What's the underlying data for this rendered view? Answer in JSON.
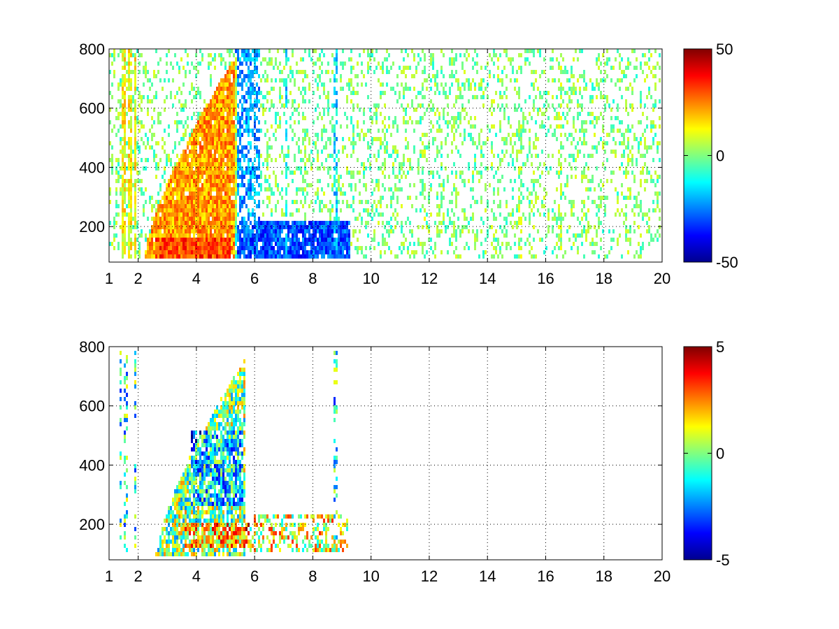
{
  "chart_data": [
    {
      "type": "heatmap",
      "title": "",
      "xlabel": "",
      "ylabel": "",
      "xlim": [
        1,
        20
      ],
      "ylim": [
        80,
        800
      ],
      "x_ticks": [
        1,
        2,
        4,
        6,
        8,
        10,
        12,
        14,
        16,
        18,
        20
      ],
      "y_ticks": [
        200,
        400,
        600,
        800
      ],
      "grid": true,
      "colormap": "jet",
      "colorbar": {
        "min": -50,
        "max": 50,
        "ticks": [
          -50,
          0,
          50
        ]
      },
      "noise_level": 10,
      "fill_probability": 0.25,
      "regions": [
        {
          "shape": "wedge",
          "x_range": [
            2.2,
            5.4
          ],
          "y_peak": 780,
          "value": 22,
          "weight": 0.95
        },
        {
          "shape": "band",
          "x_range": [
            2.6,
            5.2
          ],
          "y_range": [
            90,
            160
          ],
          "value": 40,
          "weight": 1.0
        },
        {
          "shape": "band",
          "x_range": [
            5.3,
            9.3
          ],
          "y_range": [
            90,
            220
          ],
          "value": -30,
          "weight": 0.9
        },
        {
          "shape": "band",
          "x_range": [
            5.3,
            6.2
          ],
          "y_range": [
            160,
            800
          ],
          "value": -22,
          "weight": 0.55
        },
        {
          "shape": "columns",
          "x": [
            1.5,
            1.7,
            1.9
          ],
          "y_range": [
            80,
            800
          ],
          "value": 12,
          "weight": 0.85
        },
        {
          "shape": "columns",
          "x": [
            5.8,
            7.1,
            8.8
          ],
          "y_range": [
            80,
            800
          ],
          "value": -15,
          "weight": 0.65
        },
        {
          "shape": "columns",
          "x": [
            11.8,
            14.2,
            15.1,
            16.5,
            18.8
          ],
          "y_range": [
            80,
            800
          ],
          "value": 3,
          "weight": 0.4
        }
      ]
    },
    {
      "type": "heatmap",
      "title": "",
      "xlabel": "",
      "ylabel": "",
      "xlim": [
        1,
        20
      ],
      "ylim": [
        80,
        800
      ],
      "x_ticks": [
        1,
        2,
        4,
        6,
        8,
        10,
        12,
        14,
        16,
        18,
        20
      ],
      "y_ticks": [
        200,
        400,
        600,
        800
      ],
      "grid": true,
      "colormap": "jet",
      "colorbar": {
        "min": -5,
        "max": 5,
        "ticks": [
          -5,
          0,
          5
        ]
      },
      "noise_level": 2.5,
      "fill_probability": 0.0,
      "regions": [
        {
          "shape": "wedge",
          "x_range": [
            2.6,
            5.7
          ],
          "y_peak": 760,
          "value": 0,
          "weight": 0.85
        },
        {
          "shape": "band",
          "x_range": [
            3.8,
            5.6
          ],
          "y_range": [
            260,
            520
          ],
          "value": -3.5,
          "weight": 0.6
        },
        {
          "shape": "band",
          "x_range": [
            3.6,
            5.8
          ],
          "y_range": [
            120,
            200
          ],
          "value": 3.5,
          "weight": 0.85
        },
        {
          "shape": "band",
          "x_range": [
            5.8,
            9.2
          ],
          "y_range": [
            100,
            230
          ],
          "value": 1,
          "weight": 0.45
        },
        {
          "shape": "columns",
          "x": [
            1.4,
            1.6,
            1.9
          ],
          "y_range": [
            100,
            780
          ],
          "value": -1,
          "weight": 0.4
        },
        {
          "shape": "columns",
          "x": [
            8.8
          ],
          "y_range": [
            100,
            780
          ],
          "value": -1,
          "weight": 0.3
        }
      ]
    }
  ]
}
